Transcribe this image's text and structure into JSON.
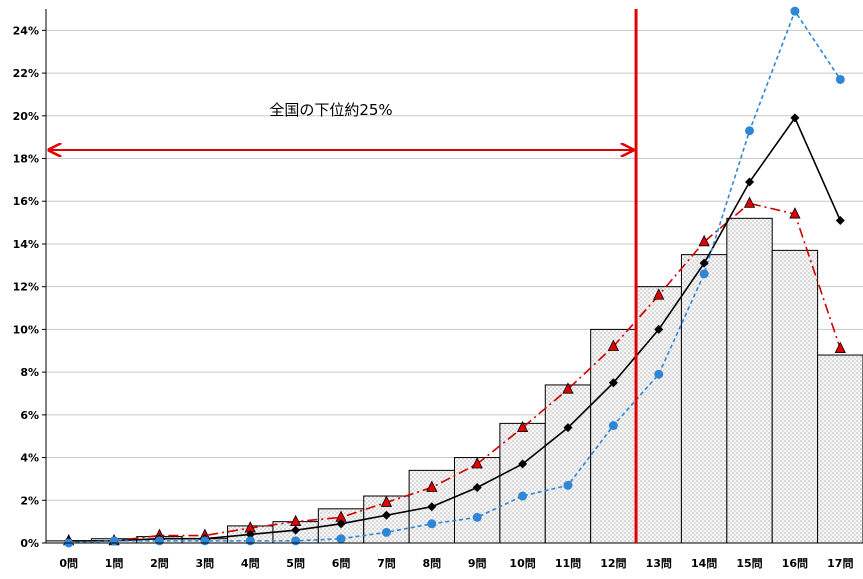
{
  "chart_data": {
    "type": "bar",
    "categories": [
      "0問",
      "1問",
      "2問",
      "3問",
      "4問",
      "5問",
      "6問",
      "7問",
      "8問",
      "9問",
      "10問",
      "11問",
      "12問",
      "13問",
      "14問",
      "15問",
      "16問",
      "17問"
    ],
    "ylim": [
      0,
      25
    ],
    "yticks": [
      0,
      2,
      4,
      6,
      8,
      10,
      12,
      14,
      16,
      18,
      20,
      22,
      24
    ],
    "ytick_labels": [
      "0%",
      "2%",
      "4%",
      "6%",
      "8%",
      "10%",
      "12%",
      "14%",
      "16%",
      "18%",
      "20%",
      "22%",
      "24%"
    ],
    "grid": true,
    "series": [
      {
        "kind": "bar",
        "values": [
          0.1,
          0.2,
          0.3,
          0.2,
          0.8,
          1.0,
          1.6,
          2.2,
          3.4,
          4.0,
          5.6,
          7.4,
          10.0,
          12.0,
          13.5,
          15.2,
          13.7,
          8.8
        ]
      },
      {
        "kind": "line",
        "marker": "triangle",
        "color": "#cc0000",
        "values": [
          0.1,
          0.1,
          0.35,
          0.35,
          0.7,
          1.0,
          1.2,
          1.9,
          2.6,
          3.7,
          5.4,
          7.2,
          9.2,
          11.6,
          14.1,
          15.9,
          15.4,
          9.1
        ]
      },
      {
        "kind": "line",
        "marker": "diamond",
        "color": "#000000",
        "values": [
          0.1,
          0.1,
          0.2,
          0.2,
          0.4,
          0.6,
          0.9,
          1.3,
          1.7,
          2.6,
          3.7,
          5.4,
          7.5,
          10.0,
          13.1,
          16.9,
          19.9,
          15.1
        ]
      },
      {
        "kind": "line",
        "marker": "circle",
        "color": "#2f86d6",
        "values": [
          0.0,
          0.1,
          0.1,
          0.1,
          0.1,
          0.1,
          0.2,
          0.5,
          0.9,
          1.2,
          2.2,
          2.7,
          5.5,
          7.9,
          12.6,
          19.3,
          24.9,
          21.7
        ]
      }
    ],
    "cutoff_after_index": 12,
    "annotation": {
      "text": "全国の下位約25%",
      "y_value": 18.4
    }
  }
}
